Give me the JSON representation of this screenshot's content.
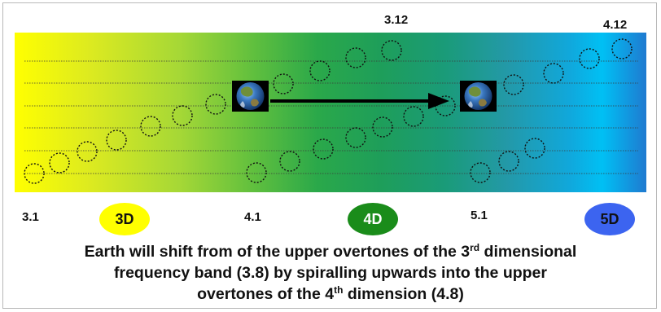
{
  "top_labels": {
    "mid": "3.12",
    "right": "4.12"
  },
  "band_markers": [
    {
      "label": "3.1"
    },
    {
      "label": "4.1"
    },
    {
      "label": "5.1"
    }
  ],
  "dimensions": [
    {
      "label": "3D",
      "color": "#ffff00",
      "text_color": "#111111"
    },
    {
      "label": "4D",
      "color": "#1a8c1a",
      "text_color": "#ffffff"
    },
    {
      "label": "5D",
      "color": "#3c64f0",
      "text_color": "#111111"
    }
  ],
  "icons": {
    "earth_start": "earth-icon",
    "earth_end": "earth-icon",
    "arrow": "arrow-right-icon"
  },
  "caption": {
    "line1_a": "Earth will shift from of the upper overtones of the 3",
    "line1_sup": "rd",
    "line1_b": " dimensional",
    "line2": "frequency band (3.8) by spiralling upwards into the upper",
    "line3_a": "overtones of the 4",
    "line3_sup": "th",
    "line3_b": " dimension (4.8)"
  },
  "colors": {
    "band_start": "#ffff00",
    "band_mid": "#1e9e5a",
    "band_end": "#00c0f4",
    "arrow": "#000000"
  }
}
